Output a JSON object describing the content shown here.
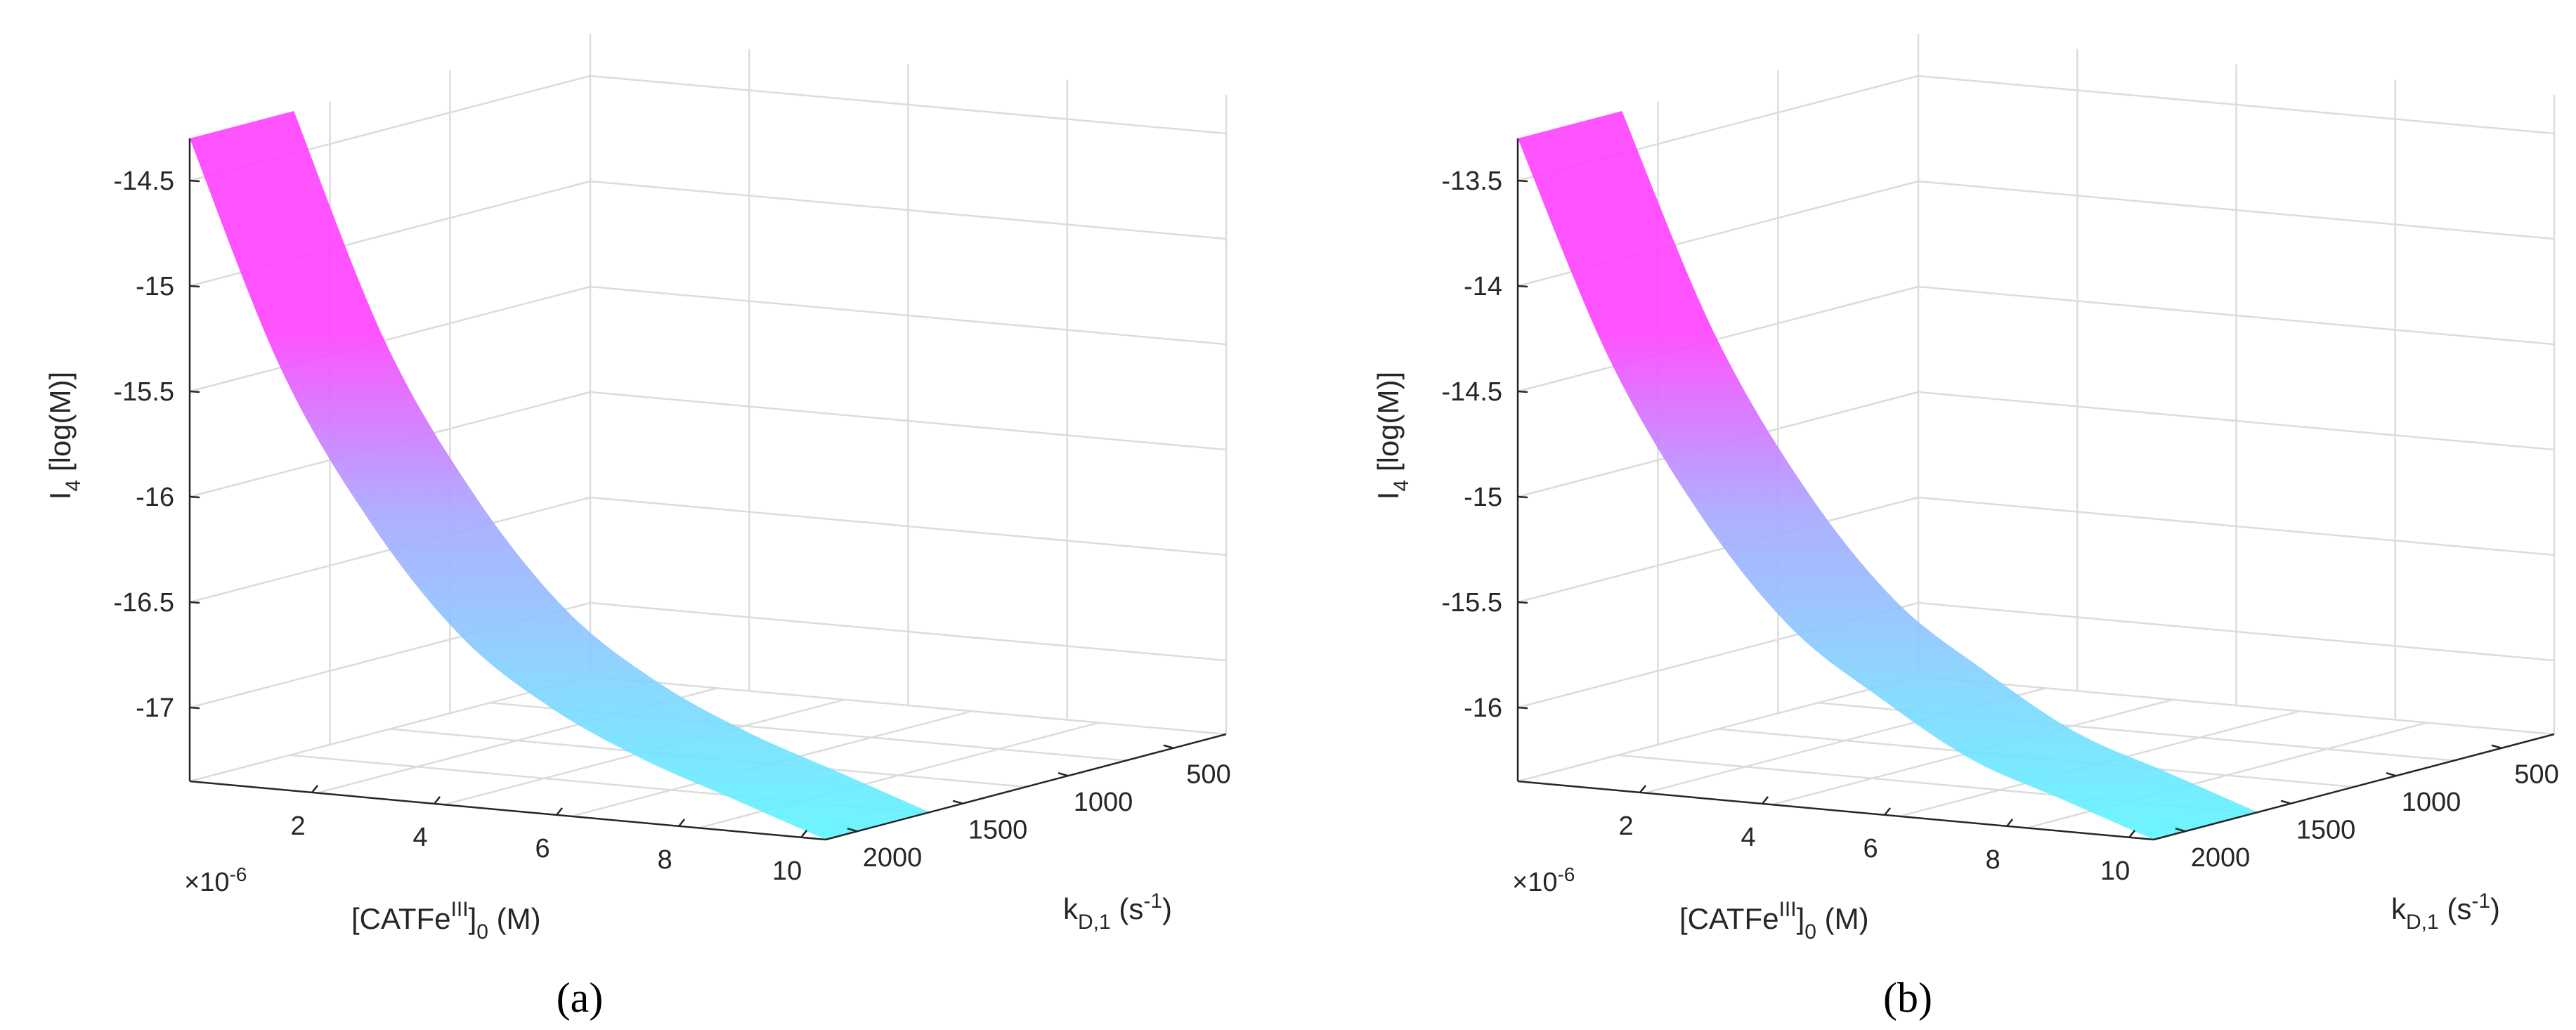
{
  "chart_data": [
    {
      "panel_label": "(a)",
      "type": "surface3d",
      "zlabel": {
        "main": "I",
        "sub": "4",
        "rest": " [log(M)]"
      },
      "xlabel": {
        "pre": "[CATFe",
        "sup": "III",
        "mid": "]",
        "sub": "0",
        "post": " (M)"
      },
      "ylabel": {
        "pre": "k",
        "sub": "D,1",
        "mid": " (s",
        "sup": "-1",
        "post": ")"
      },
      "x_multiplier": {
        "pre": "×10",
        "sup": "-6"
      },
      "x_ticks": [
        "2",
        "4",
        "6",
        "8",
        "10"
      ],
      "y_ticks": [
        "500",
        "1000",
        "1500",
        "2000"
      ],
      "z_ticks": [
        "-14.5",
        "-15",
        "-15.5",
        "-16",
        "-16.5",
        "-17"
      ],
      "zlim": [
        -17.35,
        -14.3
      ],
      "z_values": [
        -14.3,
        -15.35,
        -16.05,
        -16.55,
        -16.85,
        -17.05,
        -17.2,
        -17.35
      ],
      "colors": {
        "high": "#ff40ff",
        "low": "#5cf6ff"
      }
    },
    {
      "panel_label": "(b)",
      "type": "surface3d",
      "zlabel": {
        "main": "I",
        "sub": "4",
        "rest": " [log(M)]"
      },
      "xlabel": {
        "pre": "[CATFe",
        "sup": "III",
        "mid": "]",
        "sub": "0",
        "post": " (M)"
      },
      "ylabel": {
        "pre": "k",
        "sub": "D,1",
        "mid": " (s",
        "sup": "-1",
        "post": ")"
      },
      "x_multiplier": {
        "pre": "×10",
        "sup": "-6"
      },
      "x_ticks": [
        "2",
        "4",
        "6",
        "8",
        "10"
      ],
      "y_ticks": [
        "500",
        "1000",
        "1500",
        "2000"
      ],
      "z_ticks": [
        "-13.5",
        "-14",
        "-14.5",
        "-15",
        "-15.5",
        "-16"
      ],
      "zlim": [
        -16.35,
        -13.3
      ],
      "z_values": [
        -13.3,
        -14.3,
        -15.0,
        -15.5,
        -15.8,
        -16.05,
        -16.2,
        -16.35
      ],
      "colors": {
        "high": "#ff40ff",
        "low": "#5cf6ff"
      }
    }
  ]
}
